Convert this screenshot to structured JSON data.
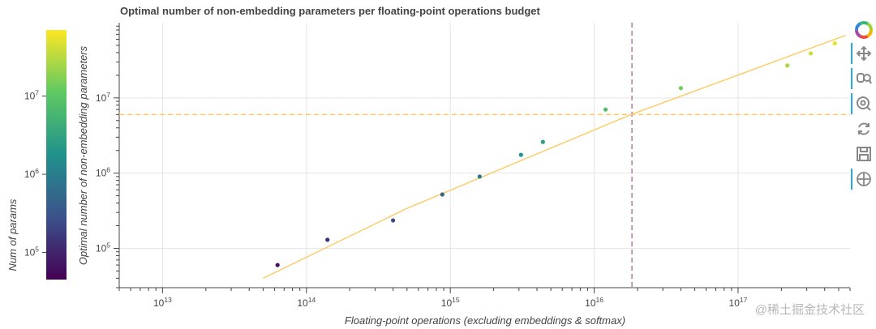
{
  "chart_data": {
    "type": "scatter",
    "title": "Optimal number of non-embedding parameters per floating-point operations budget",
    "xlabel": "Floating-point operations (excluding embeddings & softmax)",
    "ylabel": "Optimal number of non-embedding parameters",
    "xscale": "log",
    "yscale": "log",
    "xlim": [
      5000000000000.0,
      6e+17
    ],
    "ylim": [
      30000.0,
      100000000.0
    ],
    "grid": true,
    "x_ticks": [
      {
        "value": 10000000000000.0,
        "base": "10",
        "exp": "13"
      },
      {
        "value": 100000000000000.0,
        "base": "10",
        "exp": "14"
      },
      {
        "value": 1000000000000000.0,
        "base": "10",
        "exp": "15"
      },
      {
        "value": 1e+16,
        "base": "10",
        "exp": "16"
      },
      {
        "value": 1e+17,
        "base": "10",
        "exp": "17"
      }
    ],
    "y_ticks": [
      {
        "value": 100000.0,
        "base": "10",
        "exp": "5"
      },
      {
        "value": 1000000.0,
        "base": "10",
        "exp": "6"
      },
      {
        "value": 10000000.0,
        "base": "10",
        "exp": "7"
      }
    ],
    "points": [
      {
        "x": 63000000000000.0,
        "y": 60000.0
      },
      {
        "x": 140000000000000.0,
        "y": 130000.0
      },
      {
        "x": 400000000000000.0,
        "y": 235000.0
      },
      {
        "x": 880000000000000.0,
        "y": 520000.0
      },
      {
        "x": 1600000000000000.0,
        "y": 900000.0
      },
      {
        "x": 3100000000000000.0,
        "y": 1750000.0
      },
      {
        "x": 4400000000000000.0,
        "y": 2600000.0
      },
      {
        "x": 1.2e+16,
        "y": 7000000.0
      },
      {
        "x": 4e+16,
        "y": 13500000.0
      },
      {
        "x": 2.2e+17,
        "y": 27000000.0
      },
      {
        "x": 3.2e+17,
        "y": 39000000.0
      },
      {
        "x": 4.7e+17,
        "y": 53000000.0
      }
    ],
    "fit_line": {
      "color": "#ffc960",
      "points": [
        {
          "x": 50000000000000.0,
          "y": 40000.0
        },
        {
          "x": 500000000000000.0,
          "y": 340000.0
        },
        {
          "x": 1.8e+16,
          "y": 6000000.0
        },
        {
          "x": 5.6e+17,
          "y": 68000000.0
        }
      ]
    },
    "reference_lines": {
      "vertical_x": 1.83e+16,
      "vertical_color": "#b07aa1",
      "horizontal_y": 6000000.0,
      "horizontal_color": "#ffc960"
    },
    "colorbar": {
      "label": "Num of params",
      "low": 45000.0,
      "high": 70000000.0,
      "ticks": [
        {
          "value": 100000.0,
          "base": "10",
          "exp": "5"
        },
        {
          "value": 1000000.0,
          "base": "10",
          "exp": "6"
        },
        {
          "value": 10000000.0,
          "base": "10",
          "exp": "7"
        }
      ],
      "palette": "Viridis"
    }
  },
  "toolbar": {
    "tools": [
      {
        "name": "bokeh-logo-icon",
        "active": false
      },
      {
        "name": "pan-icon",
        "active": true
      },
      {
        "name": "box-zoom-icon",
        "active": true
      },
      {
        "name": "wheel-zoom-icon",
        "active": true
      },
      {
        "name": "reset-icon",
        "active": false
      },
      {
        "name": "save-icon",
        "active": false
      },
      {
        "name": "crosshair-icon",
        "active": true
      }
    ]
  },
  "watermark": "@稀土掘金技术社区",
  "colors": {
    "axis": "#444444",
    "grid": "#e5e5e5",
    "text": "#444444",
    "accent": "#26aae1"
  }
}
